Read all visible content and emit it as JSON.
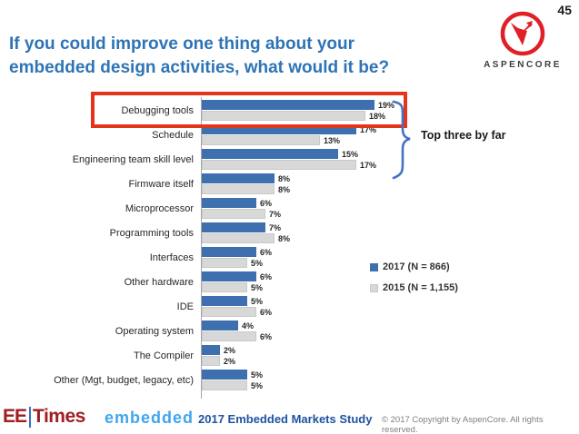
{
  "slide_number": "45",
  "title": "If you could improve one thing about your embedded design activities, what would it be?",
  "aspencore": {
    "name": "ASPENCORE",
    "brand_red": "#E01F26"
  },
  "chart_data": {
    "type": "bar",
    "orientation": "horizontal",
    "categories": [
      "Debugging tools",
      "Schedule",
      "Engineering team skill level",
      "Firmware itself",
      "Microprocessor",
      "Programming tools",
      "Interfaces",
      "Other hardware",
      "IDE",
      "Operating system",
      "The Compiler",
      "Other (Mgt, budget, legacy, etc)"
    ],
    "series": [
      {
        "name": "2017 (N = 866)",
        "color": "#3E6FAE",
        "values": [
          19,
          17,
          15,
          8,
          6,
          7,
          6,
          6,
          5,
          4,
          2,
          5
        ]
      },
      {
        "name": "2015 (N = 1,155)",
        "color": "#D8D8D8",
        "values": [
          18,
          13,
          17,
          8,
          7,
          8,
          5,
          5,
          6,
          6,
          2,
          5
        ]
      }
    ],
    "value_suffix": "%",
    "xlim": [
      0,
      21
    ],
    "grid": false,
    "legend_position": "right-middle",
    "title": "If you could improve one thing about your embedded design activities, what would it be?"
  },
  "annotations": {
    "top_three": "Top three by far",
    "highlight_color": "#E5341A",
    "brace_color": "#4472C4",
    "highlighted_category": "Debugging tools"
  },
  "legend": {
    "items": [
      {
        "label": "2017 (N = 866)",
        "color": "#3E6FAE"
      },
      {
        "label": "2015 (N = 1,155)",
        "color": "#D8D8D8"
      }
    ]
  },
  "footer": {
    "eetimes_ee": "EE",
    "eetimes_times": "Times",
    "embedded": "embedded",
    "study_title": "2017 Embedded Markets Study",
    "copyright": "© 2017 Copyright by AspenCore. All rights reserved."
  }
}
